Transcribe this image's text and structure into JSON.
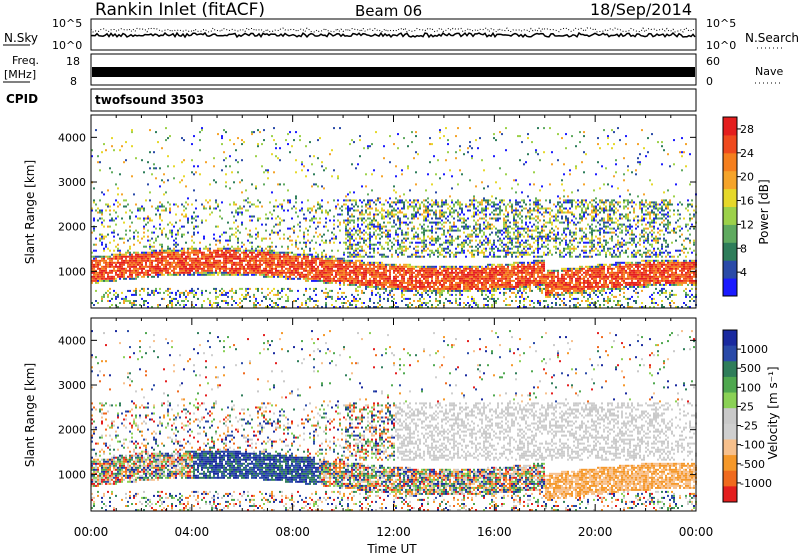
{
  "header": {
    "site": "Rankin Inlet (fitACF)",
    "beam": "Beam 06",
    "date": "18/Sep/2014"
  },
  "strip_panels": {
    "nsky_label": "N.Sky",
    "nsearch_label": "N.Search",
    "noise_ticks_left": [
      "10^5",
      "10^0"
    ],
    "noise_ticks_right": [
      "10^5",
      "10^0"
    ],
    "freq_label": "Freq.",
    "freq_unit": "[MHz]",
    "freq_ticks": [
      "18",
      "8"
    ],
    "nave_label": "Nave",
    "nave_ticks": [
      "60",
      "0"
    ],
    "cpid_label": "CPID",
    "cpid_value": "twofsound 3503"
  },
  "colors": {
    "power_scale": [
      "#1a1aff",
      "#2a4aa8",
      "#2e7d5a",
      "#5faa5f",
      "#9cd14a",
      "#e6d82a",
      "#f5a42a",
      "#f57f1e",
      "#ef4a1e",
      "#e41e1e"
    ],
    "velocity_scale": [
      "#e41e1e",
      "#f06a1e",
      "#f5982a",
      "#f7c08c",
      "#cfcfcf",
      "#c9c9c9",
      "#8ad155",
      "#4fa84f",
      "#2f7d5a",
      "#2a4aa8",
      "#1a2a9f"
    ]
  },
  "chart_data": [
    {
      "type": "heatmap",
      "ylabel": "Slant Range [km]",
      "xlabel": "Time UT",
      "x_ticks": [
        "00:00",
        "04:00",
        "08:00",
        "12:00",
        "16:00",
        "20:00",
        "00:00"
      ],
      "y_ticks": [
        1000,
        2000,
        3000,
        4000
      ],
      "ylim": [
        180,
        4500
      ],
      "xlim_hours": [
        0,
        24
      ],
      "colorbar": {
        "label": "Power [dB]",
        "ticks": [
          4,
          8,
          12,
          16,
          20,
          24,
          28
        ],
        "range": [
          0,
          30
        ]
      }
    },
    {
      "type": "heatmap",
      "ylabel": "Slant Range [km]",
      "xlabel": "Time UT",
      "x_ticks": [
        "00:00",
        "04:00",
        "08:00",
        "12:00",
        "16:00",
        "20:00",
        "00:00"
      ],
      "y_ticks": [
        1000,
        2000,
        3000,
        4000
      ],
      "ylim": [
        180,
        4500
      ],
      "xlim_hours": [
        0,
        24
      ],
      "colorbar": {
        "label": "Velocity [m s⁻¹]",
        "ticks": [
          1000,
          500,
          100,
          25,
          -25,
          -100,
          -500,
          -1000
        ]
      }
    }
  ]
}
